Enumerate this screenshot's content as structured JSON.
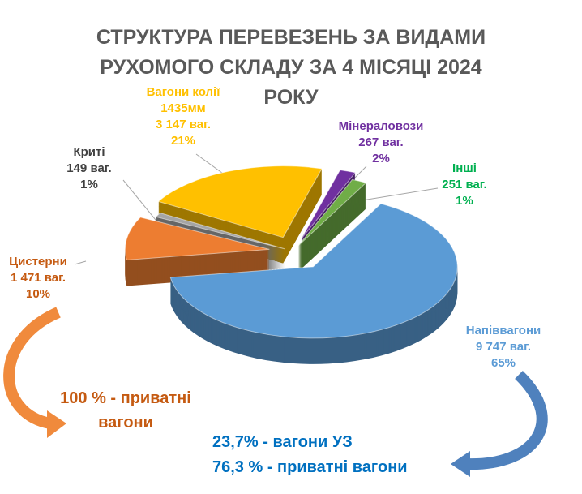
{
  "chart_data": {
    "type": "pie",
    "title": "СТРУКТУРА ПЕРЕВЕЗЕНЬ ЗА ВИДАМИ РУХОМОГО СКЛАДУ  ЗА 4 МІСЯЦІ 2024 РОКУ",
    "categories": [
      "Напіввагони",
      "Цистерни",
      "Криті",
      "Вагони колії 1435мм",
      "Мінераловози",
      "Інші"
    ],
    "values": [
      9747,
      1471,
      149,
      3147,
      267,
      251
    ],
    "value_labels": [
      "9 747 ваг.",
      "1 471 ваг.",
      "149 ваг.",
      "3 147 ваг.",
      "267 ваг.",
      "251 ваг."
    ],
    "percents": [
      {
        "value": 65,
        "label": "65%"
      },
      {
        "value": 10,
        "label": "10%"
      },
      {
        "value": 1,
        "label": "1%"
      },
      {
        "value": 21,
        "label": "21%"
      },
      {
        "value": 2,
        "label": "2%"
      },
      {
        "value": 1,
        "label": "1%"
      }
    ],
    "colors": [
      "#5b9bd5",
      "#ed7d31",
      "#a5a5a5",
      "#ffc000",
      "#7030a0",
      "#70ad47"
    ],
    "label_colors": [
      "#5b9bd5",
      "#c55a11",
      "#404040",
      "#ffc000",
      "#7030a0",
      "#00b050"
    ],
    "annotations": [
      {
        "text": "100 % -  приватні вагони",
        "color": "#c55a11"
      },
      {
        "text": "23,7% - вагони УЗ",
        "color": "#0070c0"
      },
      {
        "text": "76,3 % - приватні вагони",
        "color": "#0070c0"
      }
    ]
  }
}
